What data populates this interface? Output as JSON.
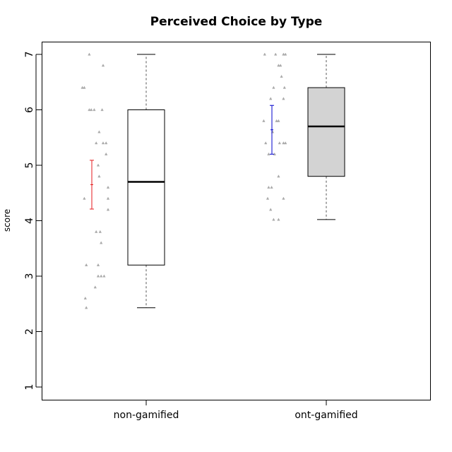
{
  "chart_data": {
    "type": "box",
    "title": "Perceived Choice by Type",
    "xlabel": "",
    "ylabel": "score",
    "ylim": [
      0.8,
      7.25
    ],
    "yticks": [
      1,
      2,
      3,
      4,
      5,
      6,
      7
    ],
    "categories": [
      "non-gamified",
      "ont-gamified"
    ],
    "boxes": [
      {
        "category": "non-gamified",
        "min": 2.43,
        "q1": 3.2,
        "median": 4.7,
        "q3": 6.0,
        "max": 7.0,
        "fill": "#ffffff",
        "mean": 4.65,
        "mean_ci": [
          4.21,
          5.09
        ],
        "ci_color": "#e41a1c",
        "points": [
          {
            "dx": -0.4,
            "y": 7.0
          },
          {
            "dx": 1.0,
            "y": 6.8
          },
          {
            "dx": -1.1,
            "y": 6.4
          },
          {
            "dx": -0.9,
            "y": 6.4
          },
          {
            "dx": -0.4,
            "y": 6.0
          },
          {
            "dx": -0.2,
            "y": 6.0
          },
          {
            "dx": 0.1,
            "y": 6.0
          },
          {
            "dx": 0.9,
            "y": 6.0
          },
          {
            "dx": 0.6,
            "y": 5.6
          },
          {
            "dx": 0.3,
            "y": 5.4
          },
          {
            "dx": 1.0,
            "y": 5.4
          },
          {
            "dx": 1.3,
            "y": 5.4
          },
          {
            "dx": 1.3,
            "y": 5.2
          },
          {
            "dx": 0.5,
            "y": 5.0
          },
          {
            "dx": 0.6,
            "y": 4.8
          },
          {
            "dx": 1.5,
            "y": 4.6
          },
          {
            "dx": -0.9,
            "y": 4.4
          },
          {
            "dx": 1.5,
            "y": 4.4
          },
          {
            "dx": 1.5,
            "y": 4.2
          },
          {
            "dx": 0.3,
            "y": 3.8
          },
          {
            "dx": 0.7,
            "y": 3.8
          },
          {
            "dx": 0.8,
            "y": 3.6
          },
          {
            "dx": -0.7,
            "y": 3.2
          },
          {
            "dx": 0.5,
            "y": 3.2
          },
          {
            "dx": 0.5,
            "y": 3.0
          },
          {
            "dx": 0.8,
            "y": 3.0
          },
          {
            "dx": 1.1,
            "y": 3.0
          },
          {
            "dx": 0.2,
            "y": 2.8
          },
          {
            "dx": -0.8,
            "y": 2.6
          },
          {
            "dx": -0.7,
            "y": 2.43
          }
        ]
      },
      {
        "category": "ont-gamified",
        "min": 4.02,
        "q1": 4.8,
        "median": 5.7,
        "q3": 6.4,
        "max": 7.0,
        "fill": "#d3d3d3",
        "mean": 5.64,
        "mean_ci": [
          5.2,
          6.08
        ],
        "ci_color": "#0000cd",
        "points": [
          {
            "dx": -0.8,
            "y": 7.0
          },
          {
            "dx": 0.3,
            "y": 7.0
          },
          {
            "dx": 1.1,
            "y": 7.0
          },
          {
            "dx": 1.3,
            "y": 7.0
          },
          {
            "dx": 0.6,
            "y": 6.8
          },
          {
            "dx": 0.8,
            "y": 6.8
          },
          {
            "dx": 0.9,
            "y": 6.6
          },
          {
            "dx": 0.1,
            "y": 6.4
          },
          {
            "dx": 1.2,
            "y": 6.4
          },
          {
            "dx": -0.2,
            "y": 6.2
          },
          {
            "dx": 1.1,
            "y": 6.2
          },
          {
            "dx": -0.9,
            "y": 5.8
          },
          {
            "dx": 0.4,
            "y": 5.8
          },
          {
            "dx": 0.6,
            "y": 5.8
          },
          {
            "dx": 0.0,
            "y": 5.6
          },
          {
            "dx": -0.7,
            "y": 5.4
          },
          {
            "dx": 0.7,
            "y": 5.4
          },
          {
            "dx": 1.1,
            "y": 5.4
          },
          {
            "dx": 1.3,
            "y": 5.4
          },
          {
            "dx": -0.4,
            "y": 5.2
          },
          {
            "dx": 0.2,
            "y": 5.2
          },
          {
            "dx": 0.6,
            "y": 4.8
          },
          {
            "dx": -0.4,
            "y": 4.6
          },
          {
            "dx": -0.1,
            "y": 4.6
          },
          {
            "dx": -0.5,
            "y": 4.4
          },
          {
            "dx": 1.1,
            "y": 4.4
          },
          {
            "dx": -0.2,
            "y": 4.2
          },
          {
            "dx": 0.1,
            "y": 4.02
          },
          {
            "dx": 0.6,
            "y": 4.02
          }
        ]
      }
    ],
    "colors": {
      "points": "#a9a9a9",
      "box_border": "#000000",
      "median": "#000000",
      "whisker": "#555555"
    }
  }
}
